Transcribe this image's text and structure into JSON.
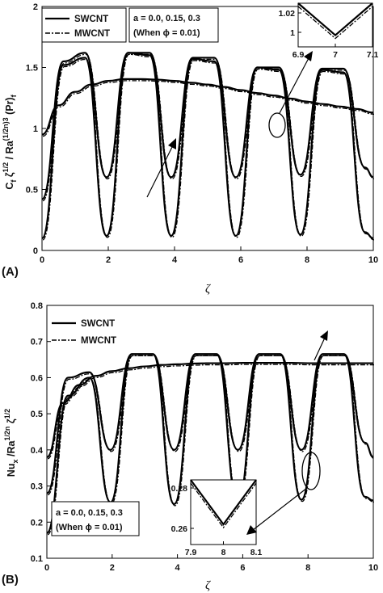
{
  "chart_data": [
    {
      "panel_label": "(A)",
      "type": "line",
      "xlabel": "ζ",
      "ylabel": "C_f ζ^(1/2) / Ra^((1/2n))3 (Pr)_f",
      "xlim": [
        0,
        10
      ],
      "ylim": [
        0,
        2
      ],
      "xticks": [
        "0",
        "2",
        "4",
        "6",
        "8",
        "10"
      ],
      "yticks": [
        "0",
        "0.5",
        "1",
        "1.5",
        "2"
      ],
      "legend": {
        "position": "top-left",
        "entries": [
          "SWCNT",
          "MWCNT"
        ]
      },
      "annotation": {
        "line1": "a = 0.0, 0.15, 0.3",
        "line2": "(When ϕ = 0.01)"
      },
      "series": [
        {
          "name": "SWCNT",
          "label": "a = 0.0",
          "x": [
            0,
            0.5,
            1,
            1.5,
            2,
            2.5,
            3,
            3.5,
            4,
            4.5,
            5,
            5.5,
            6,
            6.5,
            7,
            7.5,
            8,
            8.5,
            9,
            9.5,
            10
          ],
          "values": [
            0.95,
            1.19,
            1.3,
            1.36,
            1.39,
            1.405,
            1.405,
            1.4,
            1.39,
            1.375,
            1.36,
            1.34,
            1.315,
            1.29,
            1.27,
            1.245,
            1.22,
            1.2,
            1.18,
            1.16,
            1.13
          ]
        },
        {
          "name": "SWCNT",
          "label": "a = 0.15",
          "x": [
            0,
            0.65,
            1.3,
            1.95,
            2.6,
            3.25,
            3.9,
            4.55,
            5.2,
            5.85,
            6.5,
            7.15,
            7.8,
            8.45,
            9.1,
            9.75,
            10
          ],
          "values": [
            0.42,
            1.55,
            1.62,
            0.6,
            1.62,
            1.62,
            0.6,
            1.58,
            1.58,
            0.6,
            1.5,
            1.5,
            0.62,
            1.49,
            1.49,
            0.68,
            0.6
          ]
        },
        {
          "name": "SWCNT",
          "label": "a = 0.3",
          "x": [
            0,
            0.65,
            1.3,
            1.95,
            2.6,
            3.25,
            3.9,
            4.55,
            5.2,
            5.85,
            6.5,
            7.15,
            7.8,
            8.45,
            9.1,
            9.75,
            10
          ],
          "values": [
            0.1,
            1.52,
            1.58,
            0.12,
            1.62,
            1.6,
            0.12,
            1.57,
            1.55,
            0.12,
            1.5,
            1.48,
            0.13,
            1.48,
            1.46,
            0.15,
            0.1
          ]
        }
      ],
      "inset": {
        "xlim": [
          6.9,
          7.1
        ],
        "ylim": [
          0.985,
          1.03
        ],
        "xticks": [
          "6.9",
          "7",
          "7.1"
        ],
        "yticks": [
          "1",
          "1.02"
        ],
        "min_point": [
          7,
          0.997
        ]
      }
    },
    {
      "panel_label": "(B)",
      "type": "line",
      "xlabel": "ζ",
      "ylabel": "Nu_x / Ra^(1/2n) ζ^(1/2)",
      "xlim": [
        0,
        10
      ],
      "ylim": [
        0.1,
        0.8
      ],
      "xticks": [
        "0",
        "2",
        "4",
        "6",
        "8",
        "10"
      ],
      "yticks": [
        "0.1",
        "0.2",
        "0.3",
        "0.4",
        "0.5",
        "0.6",
        "0.7",
        "0.8"
      ],
      "legend": {
        "position": "top-left",
        "entries": [
          "SWCNT",
          "MWCNT"
        ]
      },
      "annotation": {
        "line1": "a = 0.0, 0.15, 0.3",
        "line2": "(When ϕ = 0.01)"
      },
      "series": [
        {
          "name": "SWCNT",
          "label": "a = 0.0",
          "x": [
            0,
            0.5,
            1,
            1.5,
            2,
            2.5,
            3,
            3.5,
            4,
            4.5,
            5,
            5.5,
            6,
            6.5,
            7,
            7.5,
            8,
            8.5,
            9,
            9.5,
            10
          ],
          "values": [
            0.38,
            0.53,
            0.58,
            0.605,
            0.618,
            0.626,
            0.631,
            0.635,
            0.637,
            0.639,
            0.64,
            0.64,
            0.641,
            0.641,
            0.641,
            0.641,
            0.64,
            0.64,
            0.64,
            0.64,
            0.64
          ]
        },
        {
          "name": "SWCNT",
          "label": "a = 0.15",
          "x": [
            0,
            0.65,
            1.3,
            1.95,
            2.6,
            3.25,
            3.9,
            4.55,
            5.2,
            5.85,
            6.5,
            7.15,
            7.8,
            8.45,
            9.1,
            9.75,
            10
          ],
          "values": [
            0.28,
            0.6,
            0.615,
            0.4,
            0.665,
            0.665,
            0.4,
            0.665,
            0.665,
            0.4,
            0.665,
            0.665,
            0.4,
            0.665,
            0.665,
            0.42,
            0.38
          ]
        },
        {
          "name": "SWCNT",
          "label": "a = 0.3",
          "x": [
            0,
            0.65,
            1.3,
            1.95,
            2.6,
            3.25,
            3.9,
            4.55,
            5.2,
            5.85,
            6.5,
            7.15,
            7.8,
            8.45,
            9.1,
            9.75,
            10
          ],
          "values": [
            0.17,
            0.55,
            0.6,
            0.255,
            0.665,
            0.665,
            0.25,
            0.665,
            0.665,
            0.255,
            0.665,
            0.665,
            0.262,
            0.665,
            0.665,
            0.27,
            0.26
          ]
        }
      ],
      "inset": {
        "xlim": [
          7.9,
          8.1
        ],
        "ylim": [
          0.252,
          0.284
        ],
        "xticks": [
          "7.9",
          "8",
          "8.1"
        ],
        "yticks": [
          "0.26",
          "0.28"
        ],
        "min_point": [
          8,
          0.262
        ]
      }
    }
  ],
  "legend_entries": [
    "SWCNT",
    "MWCNT"
  ]
}
